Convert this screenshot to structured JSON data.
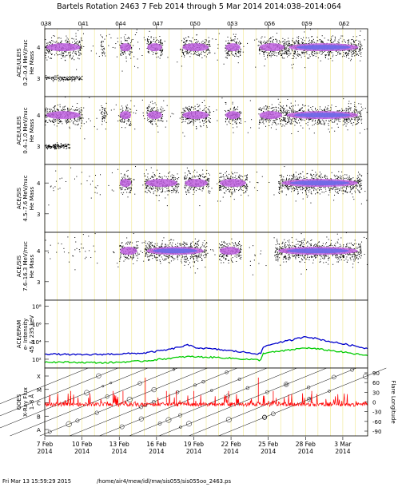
{
  "header": {
    "title": "Bartels Rotation 2463    7 Feb 2014 through 5 Mar 2014    2014:038–2014:064"
  },
  "footer": {
    "timestamp": "Fri Mar 13 15:59:29 2015",
    "path": "/home/air4/mew/idl/mw/sis055/sis055oo_2463.ps"
  },
  "chart_data": {
    "type": "scatter",
    "doy_ticks": [
      "038",
      "041",
      "044",
      "047",
      "050",
      "053",
      "056",
      "059",
      "062"
    ],
    "date_ticks": [
      {
        "label": "7 Feb",
        "year": "2014"
      },
      {
        "label": "10 Feb",
        "year": "2014"
      },
      {
        "label": "13 Feb",
        "year": "2014"
      },
      {
        "label": "16 Feb",
        "year": "2014"
      },
      {
        "label": "19 Feb",
        "year": "2014"
      },
      {
        "label": "22 Feb",
        "year": "2014"
      },
      {
        "label": "25 Feb",
        "year": "2014"
      },
      {
        "label": "28 Feb",
        "year": "2014"
      },
      {
        "label": "3 Mar",
        "year": "2014"
      }
    ],
    "x_days": [
      38,
      64
    ],
    "panels": [
      {
        "ylabel": [
          "ACE/ULEIS",
          "0.2–0.4 MeV/nuc",
          "He Mass"
        ],
        "y_ticks": [
          "4",
          "3"
        ],
        "ylim": [
          2.4,
          4.6
        ],
        "band": 4.0,
        "dense_intervals": [
          [
            38.0,
            41.0
          ],
          [
            42.5,
            42.8
          ],
          [
            44.0,
            45.0
          ],
          [
            46.2,
            47.5
          ],
          [
            49.0,
            51.3
          ],
          [
            52.5,
            53.8
          ],
          [
            55.2,
            57.4
          ],
          [
            57.4,
            63.5
          ]
        ],
        "he3_interval": [
          38.0,
          41.0
        ]
      },
      {
        "ylabel": [
          "ACE/ULEIS",
          "0.4–1.0 MeV/nuc",
          "He Mass"
        ],
        "y_ticks": [
          "4",
          "3"
        ],
        "ylim": [
          2.4,
          4.6
        ],
        "band": 4.0,
        "dense_intervals": [
          [
            38.0,
            41.0
          ],
          [
            42.5,
            43.0
          ],
          [
            44.0,
            45.0
          ],
          [
            46.2,
            47.5
          ],
          [
            49.0,
            51.3
          ],
          [
            52.5,
            53.8
          ],
          [
            55.2,
            57.2
          ],
          [
            57.2,
            63.5
          ]
        ],
        "he3_interval": [
          38.0,
          40.0
        ]
      },
      {
        "ylabel": [
          "ACE/SIS",
          "4.5–7.6 MeV/nuc",
          "He Mass"
        ],
        "y_ticks": [
          "4",
          "3"
        ],
        "ylim": [
          2.4,
          4.6
        ],
        "band": 4.0,
        "dense_intervals": [
          [
            44.0,
            45.0
          ],
          [
            46.0,
            48.8
          ],
          [
            49.2,
            51.2
          ],
          [
            52.0,
            54.3
          ],
          [
            56.8,
            63.5
          ]
        ]
      },
      {
        "ylabel": [
          "ACE/SIS",
          "7.6–16.3 MeV/nuc",
          "He Mass"
        ],
        "y_ticks": [
          "4",
          "3"
        ],
        "ylim": [
          2.4,
          4.6
        ],
        "band": 4.0,
        "dense_intervals": [
          [
            44.0,
            45.5
          ],
          [
            46.0,
            51.0
          ],
          [
            52.0,
            53.8
          ],
          [
            56.5,
            63.5
          ]
        ]
      },
      {
        "ylabel": [
          "ACE/EPAM",
          "e- Intensity",
          "45 & 235 keV"
        ],
        "y_ticks": [
          "10⁸",
          "10⁶",
          "10⁴",
          "10²"
        ],
        "series": [
          {
            "color": "#0000cc",
            "points": [
              [
                38.0,
                2.6
              ],
              [
                41.0,
                2.5
              ],
              [
                44.0,
                2.6
              ],
              [
                46.0,
                2.7
              ],
              [
                48.0,
                3.1
              ],
              [
                49.5,
                3.6
              ],
              [
                50.3,
                3.3
              ],
              [
                52.0,
                3.1
              ],
              [
                54.0,
                2.8
              ],
              [
                55.4,
                2.6
              ],
              [
                55.6,
                3.4
              ],
              [
                56.5,
                3.8
              ],
              [
                58.0,
                4.2
              ],
              [
                59.0,
                4.6
              ],
              [
                61.0,
                4.0
              ],
              [
                63.0,
                3.5
              ],
              [
                64.0,
                3.2
              ]
            ]
          },
          {
            "color": "#00cc00",
            "points": [
              [
                38.0,
                1.7
              ],
              [
                43.0,
                1.6
              ],
              [
                46.0,
                1.8
              ],
              [
                48.0,
                2.1
              ],
              [
                49.5,
                2.3
              ],
              [
                52.0,
                2.2
              ],
              [
                55.4,
                1.9
              ],
              [
                55.6,
                2.7
              ],
              [
                57.0,
                2.9
              ],
              [
                59.0,
                3.3
              ],
              [
                61.0,
                3.0
              ],
              [
                64.0,
                2.4
              ]
            ]
          }
        ]
      },
      {
        "ylabel": [
          "GOES",
          "X-Ray Flux",
          "1–8 Å"
        ],
        "left_ticks": [
          "X",
          "M",
          "C",
          "B",
          "A"
        ],
        "right_ticks": [
          "90",
          "60",
          "30",
          "0",
          "-30",
          "-60",
          "-90"
        ],
        "right_label": "Flare Longitude",
        "flux_color": "#ff0000",
        "flux_baseline": "C",
        "flux_peaks": [
          [
            40.1,
            "M"
          ],
          [
            43.5,
            "M"
          ],
          [
            44.3,
            "M"
          ],
          [
            46.1,
            "X"
          ],
          [
            47.8,
            "M"
          ],
          [
            48.6,
            "M"
          ],
          [
            50.0,
            "M"
          ],
          [
            52.8,
            "M"
          ],
          [
            55.2,
            "X"
          ],
          [
            56.4,
            "M"
          ],
          [
            59.5,
            "M"
          ]
        ]
      }
    ]
  }
}
